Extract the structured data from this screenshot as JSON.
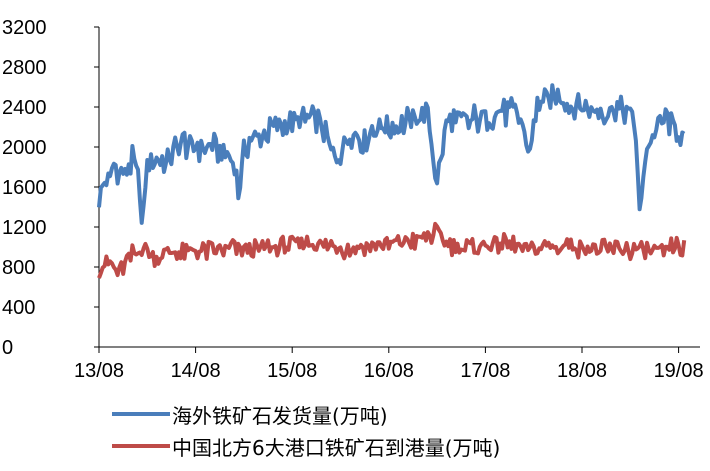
{
  "chart_data": {
    "type": "line",
    "y_ticks": [
      "0",
      "400",
      "800",
      "1200",
      "1600",
      "2000",
      "2400",
      "2800",
      "3200"
    ],
    "ylim": [
      0,
      3200
    ],
    "x_ticks": [
      "13/08",
      "14/08",
      "15/08",
      "16/08",
      "17/08",
      "18/08",
      "19/08"
    ],
    "series": [
      {
        "name": "海外铁矿石发货量(万吨)",
        "color": "#4a7ebb",
        "anchors": [
          [
            0,
            1450
          ],
          [
            0.05,
            1700
          ],
          [
            0.1,
            1650
          ],
          [
            0.15,
            1800
          ],
          [
            0.25,
            1720
          ],
          [
            0.35,
            1850
          ],
          [
            0.42,
            1640
          ],
          [
            0.45,
            1050
          ],
          [
            0.48,
            1700
          ],
          [
            0.55,
            1900
          ],
          [
            0.7,
            1850
          ],
          [
            0.85,
            2050
          ],
          [
            1.0,
            2000
          ],
          [
            1.2,
            2000
          ],
          [
            1.4,
            1880
          ],
          [
            1.45,
            1520
          ],
          [
            1.5,
            2000
          ],
          [
            1.7,
            2130
          ],
          [
            1.85,
            2200
          ],
          [
            2.05,
            2250
          ],
          [
            2.25,
            2300
          ],
          [
            2.45,
            1850
          ],
          [
            2.6,
            2150
          ],
          [
            2.75,
            2050
          ],
          [
            2.85,
            2200
          ],
          [
            3.0,
            2200
          ],
          [
            3.2,
            2250
          ],
          [
            3.4,
            2350
          ],
          [
            3.5,
            1650
          ],
          [
            3.6,
            2250
          ],
          [
            3.8,
            2250
          ],
          [
            4.0,
            2300
          ],
          [
            4.2,
            2350
          ],
          [
            4.35,
            2300
          ],
          [
            4.45,
            1950
          ],
          [
            4.55,
            2450
          ],
          [
            4.75,
            2500
          ],
          [
            5.0,
            2400
          ],
          [
            5.2,
            2350
          ],
          [
            5.4,
            2400
          ],
          [
            5.55,
            2250
          ],
          [
            5.6,
            1200
          ],
          [
            5.65,
            1950
          ],
          [
            5.75,
            2150
          ],
          [
            5.85,
            2300
          ],
          [
            6.0,
            2150
          ],
          [
            6.05,
            2080
          ]
        ]
      },
      {
        "name": "中国北方6大港口铁矿石到港量(万吨)",
        "color": "#be4b48",
        "anchors": [
          [
            0,
            800
          ],
          [
            0.1,
            830
          ],
          [
            0.2,
            750
          ],
          [
            0.3,
            880
          ],
          [
            0.38,
            950
          ],
          [
            0.45,
            1000
          ],
          [
            0.55,
            900
          ],
          [
            0.7,
            950
          ],
          [
            0.85,
            920
          ],
          [
            1.0,
            960
          ],
          [
            1.2,
            970
          ],
          [
            1.4,
            1000
          ],
          [
            1.6,
            950
          ],
          [
            1.8,
            1000
          ],
          [
            2.0,
            1020
          ],
          [
            2.2,
            1060
          ],
          [
            2.4,
            1010
          ],
          [
            2.6,
            980
          ],
          [
            2.8,
            1000
          ],
          [
            3.0,
            1030
          ],
          [
            3.2,
            1060
          ],
          [
            3.4,
            1100
          ],
          [
            3.5,
            1150
          ],
          [
            3.6,
            1050
          ],
          [
            3.8,
            980
          ],
          [
            4.0,
            1020
          ],
          [
            4.2,
            1050
          ],
          [
            4.4,
            980
          ],
          [
            4.6,
            990
          ],
          [
            4.8,
            1000
          ],
          [
            5.0,
            990
          ],
          [
            5.2,
            970
          ],
          [
            5.4,
            980
          ],
          [
            5.6,
            970
          ],
          [
            5.8,
            930
          ],
          [
            6.0,
            1000
          ],
          [
            6.05,
            980
          ]
        ]
      }
    ]
  }
}
